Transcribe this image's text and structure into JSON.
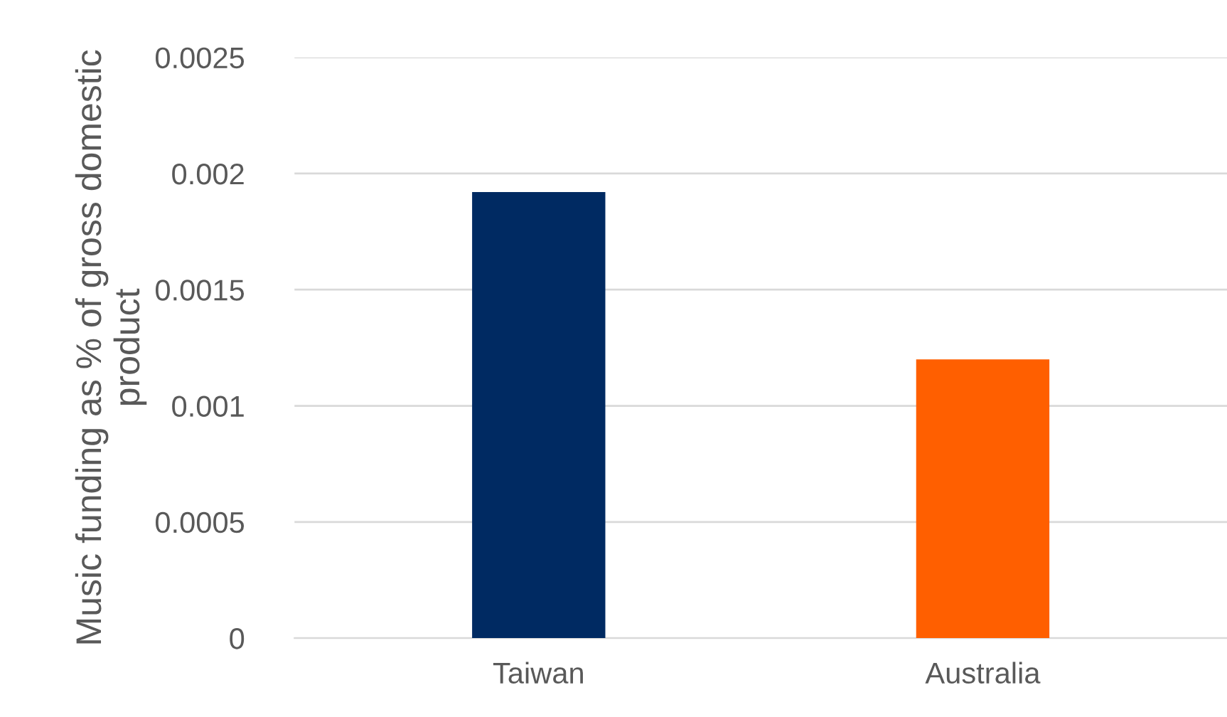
{
  "chart_data": {
    "type": "bar",
    "ylabel": "Music funding as % of gross domestic product",
    "categories": [
      "Taiwan",
      "Australia"
    ],
    "values": [
      0.00192,
      0.0012
    ],
    "colors": [
      "#002a62",
      "#ff5f00"
    ],
    "ylim": [
      0,
      0.0025
    ],
    "yticks": [
      0,
      0.0005,
      0.001,
      0.0015,
      0.002,
      0.0025
    ],
    "grid": "y"
  }
}
